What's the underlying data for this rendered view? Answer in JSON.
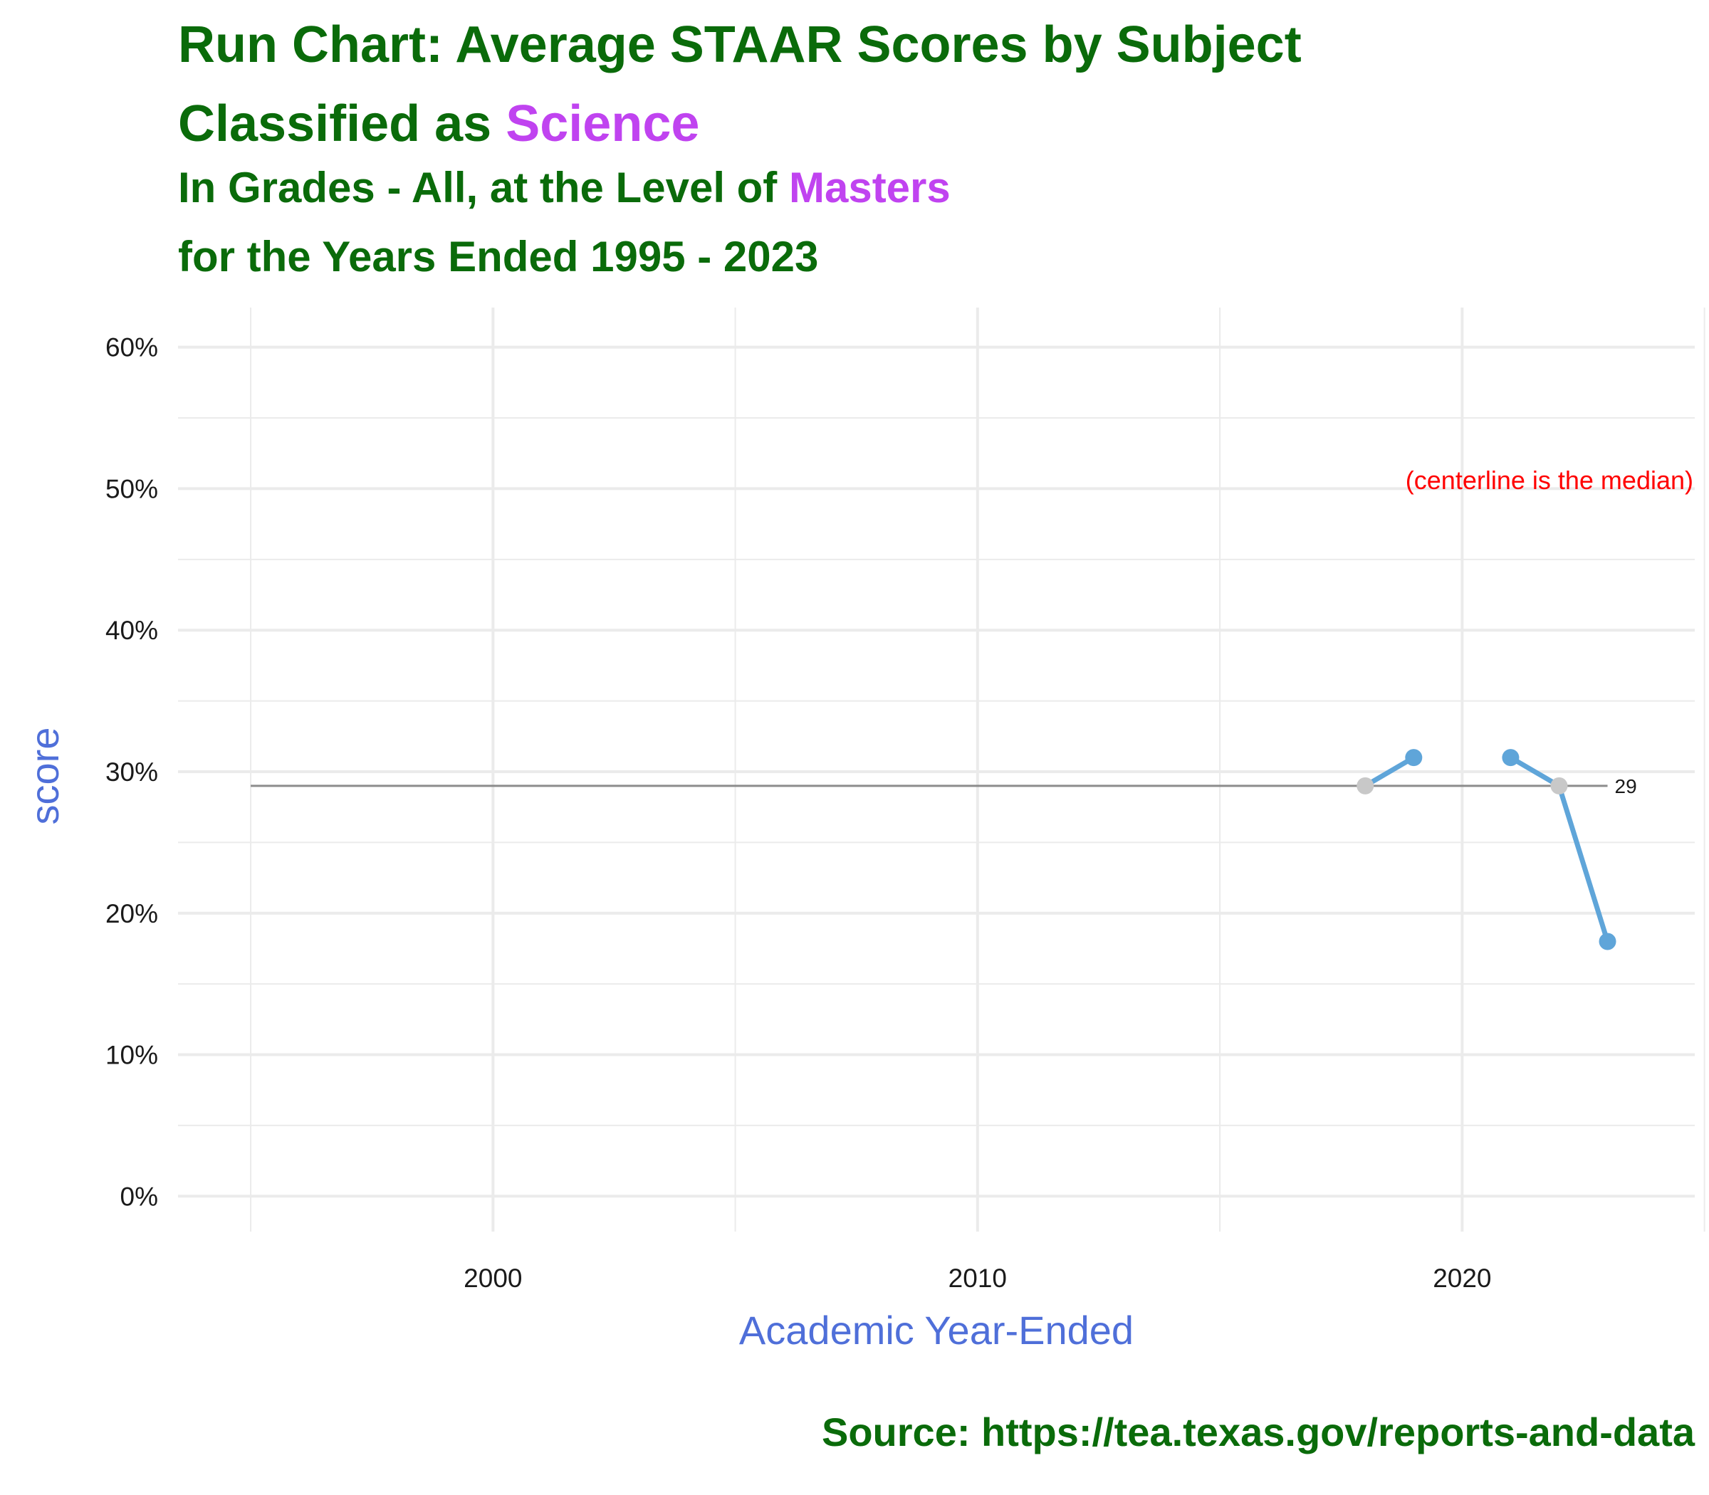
{
  "chart_data": {
    "type": "line",
    "title": {
      "line1": "Run Chart: Average STAAR Scores by Subject",
      "line2_prefix": "Classified as ",
      "line2_highlight": "Science",
      "line3_prefix": "In Grades - All, at the Level of ",
      "line3_highlight": "Masters",
      "line4": "for the Years Ended 1995 - 2023"
    },
    "xlabel": "Academic Year-Ended",
    "ylabel": "score",
    "caption": "Source:  https://tea.texas.gov/reports-and-data",
    "annotation": "(centerline is the median)",
    "median_label": "29",
    "median": 29,
    "xlim": [
      1993.5,
      2024.8
    ],
    "ylim": [
      -2.5,
      62.8
    ],
    "x_ticks": [
      2000,
      2010,
      2020
    ],
    "x_tick_labels": [
      "2000",
      "2010",
      "2020"
    ],
    "x_minor_ticks": [
      1995,
      2005,
      2015,
      2025
    ],
    "y_ticks": [
      0,
      10,
      20,
      30,
      40,
      50,
      60
    ],
    "y_tick_labels": [
      "0%",
      "10%",
      "20%",
      "30%",
      "40%",
      "50%",
      "60%"
    ],
    "y_minor_ticks": [
      5,
      15,
      25,
      35,
      45,
      55
    ],
    "centerline_x": [
      1995,
      2023
    ],
    "series": [
      {
        "x": [
          2018,
          2019,
          2021,
          2022,
          2023
        ],
        "values": [
          29,
          31,
          31,
          29,
          18
        ],
        "point_colors": [
          "#c8c8c8",
          "#5fa5d9",
          "#5fa5d9",
          "#c8c8c8",
          "#5fa5d9"
        ]
      }
    ],
    "colors": {
      "title": "#0a6b0a",
      "highlight": "#c043f0",
      "axis_label": "#4f6fd9",
      "annotation": "#ff0000",
      "line": "#5fa5d9",
      "centerline": "#8c8c8c",
      "grid": "#ebebeb"
    },
    "grid": true
  }
}
